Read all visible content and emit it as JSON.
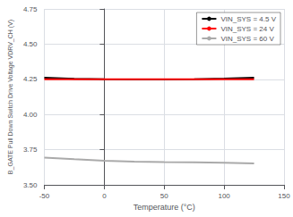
{
  "chart_data": {
    "type": "line",
    "xlabel": "Temperature (°C)",
    "ylabel": "B_GATE Pull Down Switch Drive Voltage VDRV_CH (V)",
    "x": [
      -50,
      -25,
      0,
      25,
      50,
      75,
      100,
      125
    ],
    "series": [
      {
        "name": "VIN_SYS = 4.5 V",
        "color": "#000000",
        "values": [
          4.262,
          4.254,
          4.25,
          4.249,
          4.249,
          4.251,
          4.255,
          4.262
        ]
      },
      {
        "name": "VIN_SYS = 24 V",
        "color": "#ff0000",
        "values": [
          4.25,
          4.25,
          4.25,
          4.25,
          4.25,
          4.25,
          4.25,
          4.25
        ]
      },
      {
        "name": "VIN_SYS = 60 V",
        "color": "#aaaaaa",
        "values": [
          3.693,
          3.682,
          3.672,
          3.665,
          3.662,
          3.66,
          3.657,
          3.653
        ]
      }
    ],
    "xlim": [
      -50,
      150
    ],
    "xticks": [
      -50,
      0,
      50,
      100,
      150
    ],
    "ylim": [
      3.5,
      4.75
    ],
    "yticks": [
      {
        "value": 3.5,
        "label": "3.50"
      },
      {
        "value": 3.75,
        "label": "3.75"
      },
      {
        "value": 4.0,
        "label": "4.00"
      },
      {
        "value": 4.25,
        "label": "4.25"
      },
      {
        "value": 4.5,
        "label": "4.50"
      },
      {
        "value": 4.75,
        "label": "4.75"
      }
    ],
    "grid": true,
    "legend": "upper right"
  }
}
